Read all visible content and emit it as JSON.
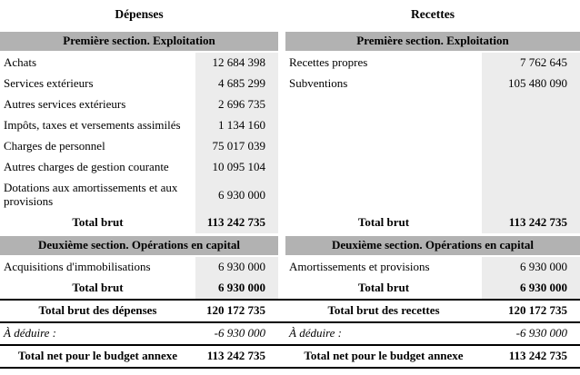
{
  "colors": {
    "section_bar": "#b2b2b2",
    "value_column": "#ececec",
    "rule": "#000000"
  },
  "table": {
    "left": {
      "header": "Dépenses",
      "section1_title": "Première section. Exploitation",
      "s1_rows": [
        {
          "label": "Achats",
          "value": "12 684 398"
        },
        {
          "label": "Services extérieurs",
          "value": "4 685 299"
        },
        {
          "label": "Autres services extérieurs",
          "value": "2 696 735"
        },
        {
          "label": "Impôts, taxes et versements assimilés",
          "value": "1 134 160"
        },
        {
          "label": "Charges de personnel",
          "value": "75 017 039"
        },
        {
          "label": "Autres charges de gestion courante",
          "value": "10 095 104"
        },
        {
          "label": "Dotations aux amortissements et aux provisions",
          "value": "6 930 000"
        }
      ],
      "s1_total_label": "Total brut",
      "s1_total_value": "113 242 735",
      "section2_title": "Deuxième section. Opérations en capital",
      "s2_row": {
        "label": "Acquisitions d'immobilisations",
        "value": "6 930 000"
      },
      "s2_total_label": "Total brut",
      "s2_total_value": "6 930 000",
      "summary_brut_label": "Total brut des dépenses",
      "summary_brut_value": "120 172 735",
      "deduire_label": "À déduire :",
      "deduire_value": "-6 930 000",
      "net_label": "Total net pour le budget annexe",
      "net_value": "113 242 735"
    },
    "right": {
      "header": "Recettes",
      "section1_title": "Première section. Exploitation",
      "s1_rows": [
        {
          "label": "Recettes propres",
          "value": "7 762 645"
        },
        {
          "label": "Subventions",
          "value": "105 480 090"
        }
      ],
      "s1_total_label": "Total brut",
      "s1_total_value": "113 242 735",
      "section2_title": "Deuxième section. Opérations en capital",
      "s2_row": {
        "label": "Amortissements et provisions",
        "value": "6 930 000"
      },
      "s2_total_label": "Total brut",
      "s2_total_value": "6 930 000",
      "summary_brut_label": "Total brut des recettes",
      "summary_brut_value": "120 172 735",
      "deduire_label": "À déduire :",
      "deduire_value": "-6 930 000",
      "net_label": "Total net pour le budget annexe",
      "net_value": "113 242 735"
    }
  }
}
